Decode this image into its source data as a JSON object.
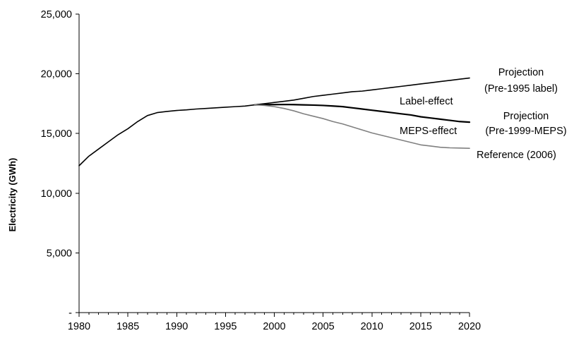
{
  "chart_data": {
    "type": "line",
    "title": "",
    "xlabel": "",
    "ylabel": "Electricity (GWh)",
    "xlim": [
      1980,
      2020
    ],
    "ylim": [
      0,
      25000
    ],
    "x_ticks": [
      1980,
      1985,
      1990,
      1995,
      2000,
      2005,
      2010,
      2015,
      2020
    ],
    "x_tick_labels": [
      "1980",
      "1985",
      "1990",
      "1995",
      "2000",
      "2005",
      "2010",
      "2015",
      "2020"
    ],
    "y_ticks": [
      0,
      5000,
      10000,
      15000,
      20000,
      25000
    ],
    "y_tick_labels": [
      "-",
      "5,000",
      "10,000",
      "15,000",
      "20,000",
      "25,000"
    ],
    "grid": false,
    "legend": "none",
    "series": [
      {
        "name": "Projection (Pre-1995 label)",
        "color": "#000000",
        "x": [
          1980,
          1981,
          1982,
          1983,
          1984,
          1985,
          1986,
          1987,
          1988,
          1989,
          1990,
          1991,
          1992,
          1993,
          1994,
          1995,
          1996,
          1997,
          1998,
          1999,
          2000,
          2001,
          2002,
          2003,
          2004,
          2005,
          2006,
          2007,
          2008,
          2009,
          2010,
          2011,
          2012,
          2013,
          2014,
          2015,
          2016,
          2017,
          2018,
          2019,
          2020
        ],
        "values": [
          12300,
          13100,
          13700,
          14300,
          14900,
          15400,
          16000,
          16500,
          16750,
          16850,
          16930,
          16980,
          17050,
          17100,
          17150,
          17200,
          17250,
          17300,
          17400,
          17500,
          17600,
          17700,
          17800,
          17950,
          18100,
          18200,
          18300,
          18400,
          18500,
          18550,
          18650,
          18750,
          18850,
          18950,
          19050,
          19150,
          19250,
          19350,
          19450,
          19550,
          19650
        ]
      },
      {
        "name": "Projection (Pre-1999-MEPS)",
        "color": "#000000",
        "x": [
          1998,
          1999,
          2000,
          2001,
          2002,
          2003,
          2004,
          2005,
          2006,
          2007,
          2008,
          2009,
          2010,
          2011,
          2012,
          2013,
          2014,
          2015,
          2016,
          2017,
          2018,
          2019,
          2020
        ],
        "values": [
          17400,
          17420,
          17420,
          17430,
          17420,
          17400,
          17380,
          17350,
          17300,
          17250,
          17150,
          17050,
          16950,
          16850,
          16750,
          16650,
          16550,
          16400,
          16300,
          16200,
          16100,
          16000,
          15950
        ]
      },
      {
        "name": "Reference (2006)",
        "color": "#808080",
        "x": [
          1998,
          1999,
          2000,
          2001,
          2002,
          2003,
          2004,
          2005,
          2006,
          2007,
          2008,
          2009,
          2010,
          2011,
          2012,
          2013,
          2014,
          2015,
          2016,
          2017,
          2018,
          2019,
          2020
        ],
        "values": [
          17400,
          17350,
          17250,
          17100,
          16900,
          16650,
          16450,
          16250,
          16000,
          15800,
          15550,
          15300,
          15050,
          14850,
          14650,
          14450,
          14250,
          14050,
          13950,
          13850,
          13800,
          13780,
          13760
        ]
      }
    ],
    "annotations": [
      {
        "id": "projection_label",
        "lines": [
          "Projection",
          "(Pre-1995 label)"
        ]
      },
      {
        "id": "label_effect",
        "lines": [
          "Label-effect"
        ]
      },
      {
        "id": "projection_meps",
        "lines": [
          "Projection",
          "(Pre-1999-MEPS)"
        ]
      },
      {
        "id": "meps_effect",
        "lines": [
          "MEPS-effect"
        ]
      },
      {
        "id": "reference",
        "lines": [
          "Reference (2006)"
        ]
      }
    ]
  }
}
